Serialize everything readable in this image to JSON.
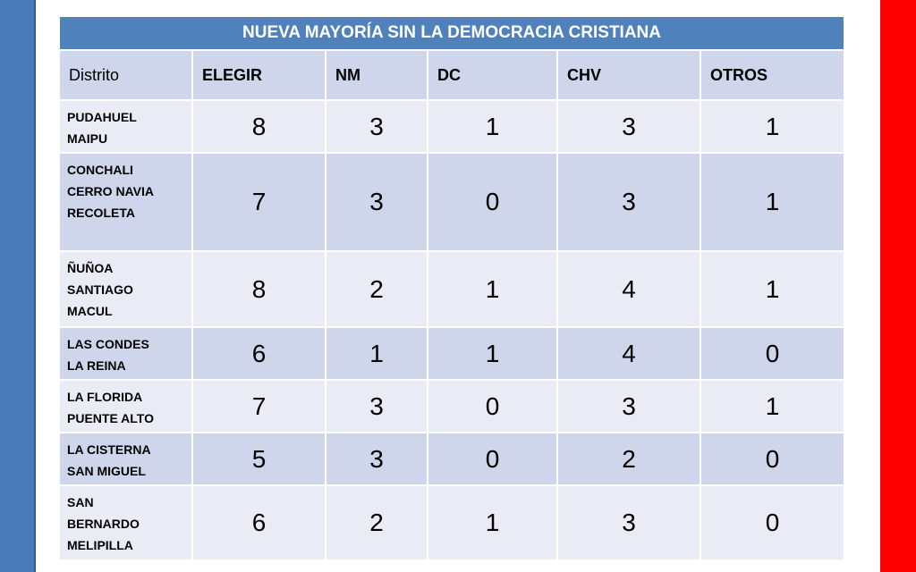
{
  "table": {
    "title": "NUEVA MAYORÍA SIN LA DEMOCRACIA CRISTIANA",
    "headers": [
      "Distrito",
      "ELEGIR",
      "NM",
      "DC",
      "CHV",
      "OTROS"
    ],
    "rows": [
      {
        "distrito": [
          "PUDAHUEL",
          "MAIPU"
        ],
        "values": [
          "8",
          "3",
          "1",
          "3",
          "1"
        ]
      },
      {
        "distrito": [
          "CONCHALI",
          "CERRO NAVIA",
          "RECOLETA"
        ],
        "values": [
          "7",
          "3",
          "0",
          "3",
          "1"
        ]
      },
      {
        "distrito": [
          "ÑUÑOA",
          "SANTIAGO",
          "MACUL"
        ],
        "values": [
          "8",
          "2",
          "1",
          "4",
          "1"
        ]
      },
      {
        "distrito": [
          "LAS CONDES",
          "LA REINA"
        ],
        "values": [
          "6",
          "1",
          "1",
          "4",
          "0"
        ]
      },
      {
        "distrito": [
          "LA FLORIDA",
          "PUENTE ALTO"
        ],
        "values": [
          "7",
          "3",
          "0",
          "3",
          "1"
        ]
      },
      {
        "distrito": [
          "LA CISTERNA",
          "SAN MIGUEL"
        ],
        "values": [
          "5",
          "3",
          "0",
          "2",
          "0"
        ]
      },
      {
        "distrito": [
          "SAN",
          "BERNARDO",
          "MELIPILLA"
        ],
        "values": [
          "6",
          "2",
          "1",
          "3",
          "0"
        ]
      }
    ]
  },
  "colors": {
    "left_bar": "#4a7ab8",
    "right_bar": "#ff0000",
    "title_bg": "#4f81bd"
  }
}
